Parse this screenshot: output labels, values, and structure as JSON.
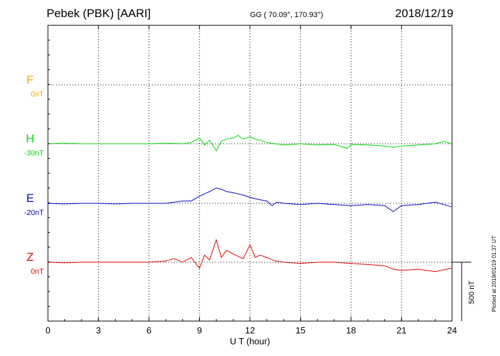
{
  "header": {
    "station": "Pebek (PBK)  [AARI]",
    "coords": "GG ( 70.09°, 170.93°)",
    "date": "2018/12/19"
  },
  "footer": {
    "plotted": "Plotted at 2019/01/19 01:37 UT"
  },
  "colors": {
    "F": "#ffa500",
    "H": "#00dd00",
    "E": "#0000cc",
    "Z": "#dd0000",
    "grid": "#000000"
  },
  "chart_data": {
    "type": "line",
    "title": "",
    "xlabel": "U T (hour)",
    "ylabel": "",
    "xlim": [
      0,
      24
    ],
    "x_ticks": [
      "0",
      "3",
      "6",
      "9",
      "12",
      "15",
      "18",
      "21",
      "24"
    ],
    "scale_bar": "500 nT",
    "grid": true,
    "series": [
      {
        "name": "F",
        "baseline": "0nT",
        "values": []
      },
      {
        "name": "H",
        "baseline": "-30nT",
        "x": [
          0,
          1,
          2,
          3,
          4,
          5,
          6,
          7,
          8,
          8.5,
          9,
          9.3,
          9.6,
          10,
          10.3,
          10.6,
          11,
          11.3,
          11.6,
          12,
          12.3,
          12.6,
          13,
          13.5,
          14,
          15,
          16,
          17,
          17.8,
          18,
          19,
          20,
          20.5,
          21,
          22,
          23,
          23.5,
          24
        ],
        "values": [
          0,
          5,
          0,
          0,
          0,
          0,
          0,
          5,
          0,
          10,
          50,
          -10,
          30,
          -60,
          20,
          40,
          50,
          70,
          40,
          60,
          40,
          30,
          10,
          0,
          -10,
          0,
          -10,
          -5,
          -40,
          -5,
          -10,
          -20,
          -30,
          -20,
          -10,
          0,
          20,
          0
        ]
      },
      {
        "name": "E",
        "baseline": "-20nT",
        "x": [
          0,
          1,
          2,
          3,
          4,
          5,
          6,
          7,
          8,
          8.5,
          9,
          9.3,
          9.6,
          10,
          10.3,
          10.6,
          11,
          11.3,
          11.6,
          12,
          12.3,
          12.6,
          13,
          13.3,
          13.6,
          14,
          15,
          16,
          17,
          18,
          19,
          20,
          20.5,
          21,
          22,
          23,
          24
        ],
        "values": [
          0,
          -5,
          0,
          0,
          -5,
          0,
          0,
          0,
          20,
          20,
          60,
          80,
          100,
          130,
          120,
          100,
          90,
          80,
          70,
          50,
          40,
          30,
          20,
          -20,
          10,
          0,
          -10,
          0,
          -10,
          -20,
          -10,
          -20,
          -70,
          -20,
          -10,
          10,
          -30
        ]
      },
      {
        "name": "Z",
        "baseline": "0nT",
        "x": [
          0,
          1,
          2,
          3,
          4,
          5,
          6,
          7,
          7.5,
          8,
          8.5,
          9,
          9.3,
          9.6,
          10,
          10.3,
          10.6,
          11,
          11.3,
          11.6,
          12,
          12.3,
          12.6,
          13,
          13.5,
          14,
          15,
          16,
          17,
          18,
          19,
          20,
          20.5,
          21,
          22,
          23,
          24
        ],
        "values": [
          0,
          -5,
          0,
          0,
          0,
          0,
          0,
          10,
          30,
          0,
          40,
          -50,
          60,
          20,
          190,
          40,
          100,
          70,
          50,
          30,
          150,
          40,
          60,
          40,
          10,
          0,
          -10,
          0,
          0,
          -10,
          -20,
          -30,
          -60,
          -70,
          -60,
          -80,
          -50
        ]
      }
    ]
  }
}
